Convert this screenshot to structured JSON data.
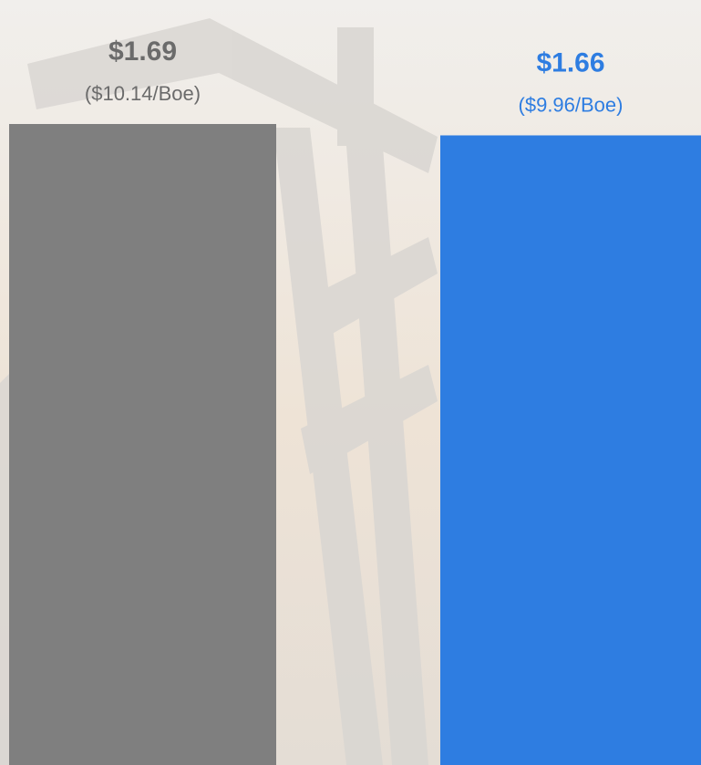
{
  "chart_data": {
    "type": "bar",
    "categories": [
      null,
      null
    ],
    "values": [
      1.69,
      1.66
    ],
    "value_labels": [
      "$1.69",
      "$1.66"
    ],
    "per_boe_labels": [
      "($10.14/Boe)",
      "($9.96/Boe)"
    ],
    "colors": [
      "#7f7f7f",
      "#2e7de1"
    ],
    "label_colors": [
      "#6b6b6b",
      "#2e7de1"
    ]
  }
}
